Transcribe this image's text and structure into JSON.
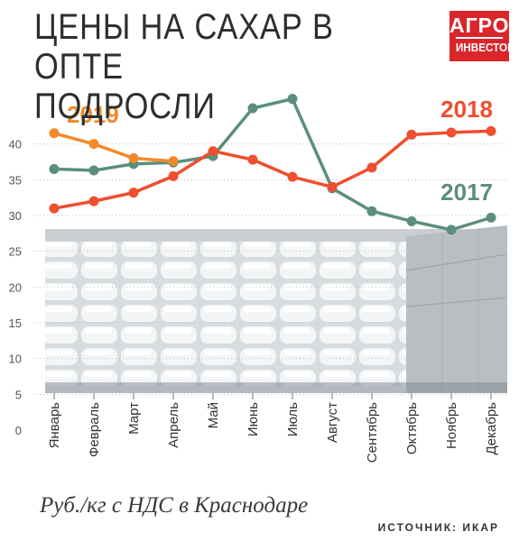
{
  "title_line1": "ЦЕНЫ НА САХАР В ОПТЕ",
  "title_line2": "ПОДРОСЛИ",
  "logo": {
    "line1": "АГРО",
    "line2": "ИНВЕСТОР",
    "color": "#d9262b"
  },
  "footnote": "Руб./кг с НДС в Краснодаре",
  "source": "ИСТОЧНИК: ИКАР",
  "chart_data": {
    "type": "line",
    "categories": [
      "Январь",
      "Февраль",
      "Март",
      "Апрель",
      "Май",
      "Июнь",
      "Июль",
      "Август",
      "Сентябрь",
      "Октябрь",
      "Ноябрь",
      "Декабрь"
    ],
    "ylim": [
      0,
      45
    ],
    "yticks": [
      0,
      5,
      10,
      15,
      20,
      25,
      30,
      35,
      40
    ],
    "grid": true,
    "series": [
      {
        "name": "2019",
        "color": "#f08a2b",
        "values": [
          41.5,
          40.0,
          38.0,
          37.6,
          null,
          null,
          null,
          null,
          null,
          null,
          null,
          null
        ]
      },
      {
        "name": "2018",
        "color": "#ee4f30",
        "values": [
          31.0,
          32.0,
          33.2,
          35.5,
          39.0,
          37.8,
          35.4,
          34.0,
          36.7,
          41.3,
          41.6,
          41.8
        ]
      },
      {
        "name": "2017",
        "color": "#5b8f7b",
        "values": [
          36.5,
          36.3,
          37.2,
          37.4,
          38.3,
          45.0,
          46.3,
          33.8,
          30.6,
          29.2,
          28.0,
          29.7
        ]
      }
    ]
  }
}
